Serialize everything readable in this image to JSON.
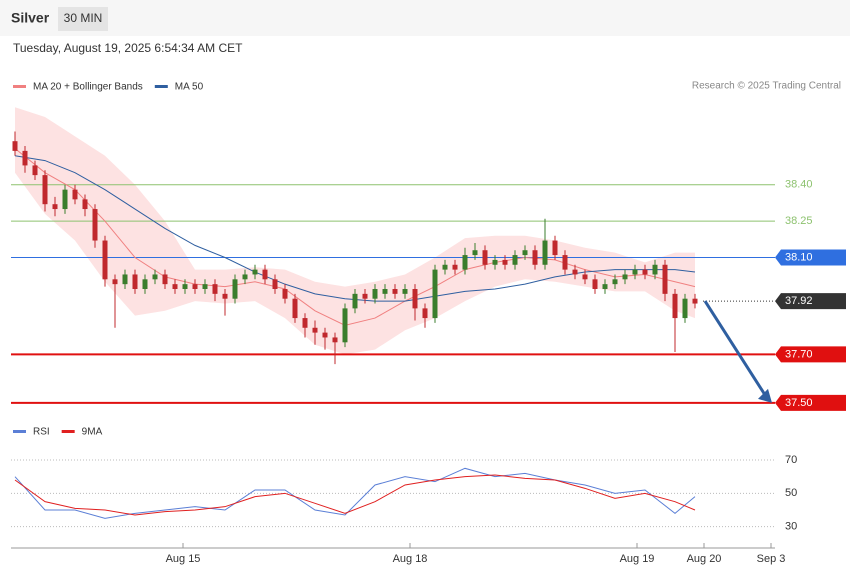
{
  "chart_data": [
    {
      "type": "candlestick",
      "title": "Silver",
      "subtitle": "30 MIN",
      "timestamp": "Tuesday, August 19, 2025 6:54:34 AM CET",
      "credit": "Research © 2025 Trading Central",
      "up_color": "#3a7d2c",
      "down_color": "#c0282d",
      "xlim": [
        -0.4,
        76
      ],
      "ylim": [
        37.45,
        38.75
      ],
      "open": [
        38.58,
        38.54,
        38.48,
        38.44,
        38.32,
        38.3,
        38.38,
        38.34,
        38.3,
        38.17,
        38.01,
        37.99,
        38.03,
        37.97,
        38.01,
        38.03,
        37.99,
        37.97,
        37.99,
        37.97,
        37.99,
        37.95,
        37.93,
        38.01,
        38.03,
        38.05,
        38.01,
        37.97,
        37.93,
        37.85,
        37.81,
        37.79,
        37.77,
        37.75,
        37.89,
        37.95,
        37.93,
        37.95,
        37.97,
        37.95,
        37.97,
        37.89,
        37.85,
        38.05,
        38.07,
        38.05,
        38.11,
        38.13,
        38.07,
        38.09,
        38.07,
        38.11,
        38.13,
        38.07,
        38.17,
        38.11,
        38.05,
        38.03,
        38.01,
        37.97,
        37.99,
        38.01,
        38.03,
        38.05,
        38.03,
        38.07,
        37.95,
        37.85,
        37.93
      ],
      "high": [
        38.62,
        38.56,
        38.5,
        38.46,
        38.35,
        38.4,
        38.4,
        38.36,
        38.32,
        38.19,
        38.03,
        38.05,
        38.05,
        38.03,
        38.05,
        38.05,
        38.01,
        38.01,
        38.01,
        38.01,
        38.01,
        37.97,
        38.03,
        38.05,
        38.07,
        38.07,
        38.03,
        37.99,
        37.95,
        37.87,
        37.84,
        37.81,
        37.79,
        37.91,
        37.97,
        37.97,
        37.99,
        37.99,
        37.99,
        37.99,
        37.99,
        37.91,
        38.07,
        38.09,
        38.09,
        38.14,
        38.16,
        38.15,
        38.11,
        38.11,
        38.13,
        38.15,
        38.15,
        38.26,
        38.19,
        38.13,
        38.07,
        38.05,
        38.03,
        38.01,
        38.03,
        38.05,
        38.07,
        38.07,
        38.09,
        38.09,
        37.97,
        37.95,
        37.95
      ],
      "low": [
        38.52,
        38.45,
        38.42,
        38.29,
        38.27,
        38.28,
        38.32,
        38.27,
        38.14,
        37.98,
        37.81,
        37.97,
        37.95,
        37.95,
        37.99,
        37.97,
        37.95,
        37.95,
        37.95,
        37.95,
        37.92,
        37.86,
        37.91,
        37.99,
        38.01,
        37.99,
        37.95,
        37.91,
        37.83,
        37.77,
        37.74,
        37.72,
        37.66,
        37.73,
        37.87,
        37.91,
        37.91,
        37.93,
        37.93,
        37.93,
        37.84,
        37.81,
        37.83,
        38.03,
        38.03,
        38.03,
        38.09,
        38.05,
        38.05,
        38.05,
        38.05,
        38.09,
        38.05,
        38.05,
        38.09,
        38.03,
        38.01,
        37.99,
        37.95,
        37.95,
        37.97,
        37.99,
        38.01,
        38.01,
        38.01,
        37.92,
        37.71,
        37.83,
        37.89
      ],
      "close": [
        38.54,
        38.48,
        38.44,
        38.32,
        38.3,
        38.38,
        38.34,
        38.3,
        38.17,
        38.01,
        37.99,
        38.03,
        37.97,
        38.01,
        38.03,
        37.99,
        37.97,
        37.99,
        37.97,
        37.99,
        37.95,
        37.93,
        38.01,
        38.03,
        38.05,
        38.01,
        37.97,
        37.93,
        37.85,
        37.81,
        37.79,
        37.77,
        37.75,
        37.89,
        37.95,
        37.93,
        37.97,
        37.97,
        37.95,
        37.97,
        37.89,
        37.85,
        38.05,
        38.07,
        38.05,
        38.11,
        38.13,
        38.07,
        38.09,
        38.07,
        38.11,
        38.13,
        38.07,
        38.17,
        38.11,
        38.05,
        38.03,
        38.01,
        37.97,
        37.99,
        38.01,
        38.03,
        38.05,
        38.03,
        38.07,
        37.95,
        37.85,
        37.93,
        37.91
      ],
      "series": [
        {
          "name": "MA 20 + Bollinger Bands",
          "color": "#f08080",
          "band_color": "#fde2e2",
          "x": [
            0,
            3,
            6,
            9,
            12,
            15,
            18,
            21,
            24,
            27,
            30,
            33,
            36,
            39,
            42,
            45,
            48,
            51,
            54,
            57,
            60,
            63,
            66,
            68
          ],
          "values": [
            38.55,
            38.45,
            38.38,
            38.25,
            38.1,
            38.02,
            37.99,
            37.98,
            38.0,
            37.97,
            37.88,
            37.82,
            37.85,
            37.92,
            37.98,
            38.05,
            38.08,
            38.1,
            38.09,
            38.05,
            38.02,
            38.03,
            38.0,
            37.98
          ],
          "upper": [
            38.72,
            38.68,
            38.6,
            38.52,
            38.4,
            38.25,
            38.05,
            38.05,
            38.06,
            38.05,
            38.0,
            37.98,
            38.0,
            38.03,
            38.1,
            38.18,
            38.19,
            38.19,
            38.17,
            38.14,
            38.12,
            38.08,
            38.12,
            38.12
          ],
          "lower": [
            38.45,
            38.28,
            38.17,
            38.0,
            37.86,
            37.88,
            37.92,
            37.91,
            37.92,
            37.85,
            37.74,
            37.7,
            37.72,
            37.8,
            37.85,
            37.92,
            37.98,
            38.01,
            38.0,
            37.98,
            37.96,
            37.96,
            37.88,
            37.85
          ]
        },
        {
          "name": "MA 50",
          "color": "#2f5fa0",
          "x": [
            0,
            3,
            6,
            9,
            12,
            15,
            18,
            21,
            24,
            27,
            30,
            33,
            36,
            39,
            42,
            45,
            48,
            51,
            54,
            57,
            60,
            63,
            66,
            68
          ],
          "values": [
            38.52,
            38.5,
            38.45,
            38.38,
            38.3,
            38.22,
            38.15,
            38.1,
            38.04,
            37.99,
            37.95,
            37.93,
            37.92,
            37.92,
            37.94,
            37.96,
            37.97,
            37.99,
            38.02,
            38.04,
            38.05,
            38.05,
            38.05,
            38.04
          ]
        }
      ],
      "levels": [
        {
          "value": 38.4,
          "label": "38.40",
          "color": "#8dc26f",
          "line": "solid",
          "boxed": false
        },
        {
          "value": 38.25,
          "label": "38.25",
          "color": "#8dc26f",
          "line": "solid",
          "boxed": false
        },
        {
          "value": 38.1,
          "label": "38.10",
          "color": "#2f6fe0",
          "line": "solid",
          "boxed": true
        },
        {
          "value": 37.92,
          "label": "37.92",
          "color": "#333333",
          "line": "dotted",
          "boxed": true
        },
        {
          "value": 37.7,
          "label": "37.70",
          "color": "#e01010",
          "line": "solid",
          "boxed": true
        },
        {
          "value": 37.5,
          "label": "37.50",
          "color": "#e01010",
          "line": "solid",
          "boxed": true
        }
      ],
      "arrow_color": "#2f5fa0"
    },
    {
      "type": "line",
      "xlim": [
        -0.4,
        76
      ],
      "ylim": [
        19,
        79
      ],
      "yticks": [
        70,
        50,
        30
      ],
      "xticks": [
        {
          "value": 16.8,
          "label": "Aug 15"
        },
        {
          "value": 39.5,
          "label": "Aug 18"
        },
        {
          "value": 62.2,
          "label": "Aug 19"
        },
        {
          "value": 68.9,
          "label": "Aug 20"
        },
        {
          "value": 75.6,
          "label": "Sep 3"
        }
      ],
      "series": [
        {
          "name": "RSI",
          "color": "#5b7fd6",
          "x": [
            0,
            3,
            6,
            9,
            12,
            15,
            18,
            21,
            24,
            27,
            30,
            33,
            36,
            39,
            42,
            45,
            48,
            51,
            54,
            57,
            60,
            63,
            66,
            68
          ],
          "values": [
            60,
            40,
            40,
            35,
            38,
            40,
            42,
            40,
            52,
            52,
            40,
            37,
            55,
            60,
            57,
            65,
            60,
            62,
            58,
            55,
            50,
            52,
            38,
            48
          ]
        },
        {
          "name": "9MA",
          "color": "#e02020",
          "x": [
            0,
            3,
            6,
            9,
            12,
            15,
            18,
            21,
            24,
            27,
            30,
            33,
            36,
            39,
            42,
            45,
            48,
            51,
            54,
            57,
            60,
            63,
            66,
            68
          ],
          "values": [
            58,
            45,
            41,
            40,
            37,
            39,
            40,
            42,
            48,
            50,
            44,
            38,
            45,
            55,
            58,
            60,
            61,
            59,
            58,
            53,
            47,
            50,
            45,
            40
          ]
        }
      ]
    }
  ]
}
